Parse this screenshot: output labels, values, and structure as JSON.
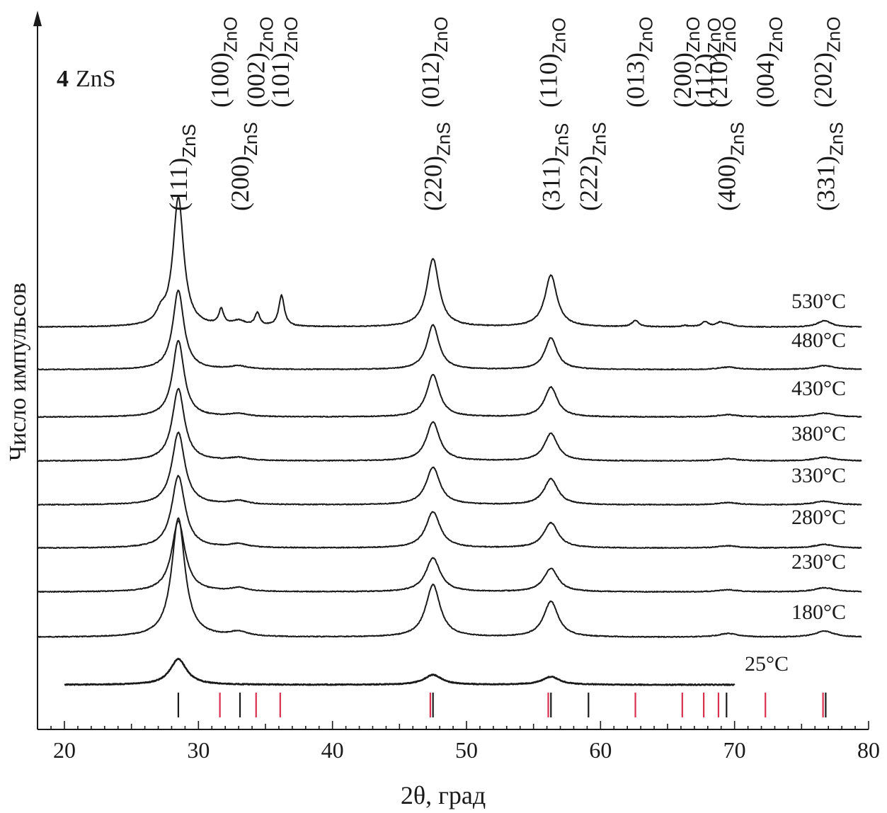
{
  "chart_data": {
    "type": "line",
    "title": "4 ZnS",
    "title_number": "4",
    "title_text": "ZnS",
    "xlabel": "2θ, град",
    "ylabel": "Число импульсов",
    "xlim": [
      18,
      80
    ],
    "xticks": [
      20,
      30,
      40,
      50,
      60,
      70,
      80
    ],
    "y_ticks_shown": false,
    "grid": false,
    "series": [
      {
        "name": "25°C",
        "peaks": [
          {
            "x": 28.5,
            "h": 0.13,
            "w": 0.75
          },
          {
            "x": 47.5,
            "h": 0.05,
            "w": 0.8
          },
          {
            "x": 56.3,
            "h": 0.04,
            "w": 0.8
          }
        ],
        "xrange": [
          20,
          70
        ]
      },
      {
        "name": "180°C",
        "peaks": [
          {
            "x": 28.5,
            "h": 1.0,
            "w": 0.6
          },
          {
            "x": 33.0,
            "h": 0.04,
            "w": 0.8
          },
          {
            "x": 47.5,
            "h": 0.44,
            "w": 0.65
          },
          {
            "x": 56.3,
            "h": 0.3,
            "w": 0.65
          },
          {
            "x": 69.5,
            "h": 0.03,
            "w": 0.9
          },
          {
            "x": 76.7,
            "h": 0.05,
            "w": 0.9
          }
        ]
      },
      {
        "name": "230°C",
        "peaks": [
          {
            "x": 28.5,
            "h": 1.0,
            "w": 0.6
          },
          {
            "x": 33.0,
            "h": 0.05,
            "w": 0.8
          },
          {
            "x": 47.5,
            "h": 0.48,
            "w": 0.65
          },
          {
            "x": 56.3,
            "h": 0.33,
            "w": 0.65
          },
          {
            "x": 69.5,
            "h": 0.03,
            "w": 0.9
          },
          {
            "x": 76.7,
            "h": 0.06,
            "w": 0.9
          }
        ]
      },
      {
        "name": "280°C",
        "peaks": [
          {
            "x": 28.5,
            "h": 1.0,
            "w": 0.6
          },
          {
            "x": 33.0,
            "h": 0.05,
            "w": 0.8
          },
          {
            "x": 47.5,
            "h": 0.5,
            "w": 0.65
          },
          {
            "x": 56.3,
            "h": 0.35,
            "w": 0.65
          },
          {
            "x": 69.5,
            "h": 0.03,
            "w": 0.9
          },
          {
            "x": 76.7,
            "h": 0.05,
            "w": 0.9
          }
        ]
      },
      {
        "name": "330°C",
        "peaks": [
          {
            "x": 28.5,
            "h": 1.0,
            "w": 0.58
          },
          {
            "x": 33.0,
            "h": 0.05,
            "w": 0.8
          },
          {
            "x": 47.5,
            "h": 0.52,
            "w": 0.62
          },
          {
            "x": 56.3,
            "h": 0.36,
            "w": 0.62
          },
          {
            "x": 69.5,
            "h": 0.03,
            "w": 0.9
          },
          {
            "x": 76.7,
            "h": 0.05,
            "w": 0.9
          }
        ]
      },
      {
        "name": "380°C",
        "peaks": [
          {
            "x": 28.5,
            "h": 1.0,
            "w": 0.55
          },
          {
            "x": 33.0,
            "h": 0.04,
            "w": 0.8
          },
          {
            "x": 47.5,
            "h": 0.54,
            "w": 0.6
          },
          {
            "x": 56.3,
            "h": 0.38,
            "w": 0.6
          },
          {
            "x": 69.5,
            "h": 0.03,
            "w": 0.9
          },
          {
            "x": 76.7,
            "h": 0.05,
            "w": 0.9
          }
        ]
      },
      {
        "name": "430°C",
        "peaks": [
          {
            "x": 28.5,
            "h": 1.0,
            "w": 0.52
          },
          {
            "x": 33.0,
            "h": 0.04,
            "w": 0.8
          },
          {
            "x": 47.5,
            "h": 0.55,
            "w": 0.58
          },
          {
            "x": 56.3,
            "h": 0.39,
            "w": 0.58
          },
          {
            "x": 69.5,
            "h": 0.03,
            "w": 0.9
          },
          {
            "x": 76.7,
            "h": 0.05,
            "w": 0.9
          }
        ]
      },
      {
        "name": "480°C",
        "peaks": [
          {
            "x": 28.5,
            "h": 1.0,
            "w": 0.5
          },
          {
            "x": 33.0,
            "h": 0.04,
            "w": 0.8
          },
          {
            "x": 47.5,
            "h": 0.56,
            "w": 0.55
          },
          {
            "x": 56.3,
            "h": 0.4,
            "w": 0.55
          },
          {
            "x": 69.5,
            "h": 0.03,
            "w": 0.9
          },
          {
            "x": 76.7,
            "h": 0.05,
            "w": 0.9
          }
        ]
      },
      {
        "name": "530°C",
        "peaks": [
          {
            "x": 27.2,
            "h": 0.08,
            "w": 0.4
          },
          {
            "x": 28.5,
            "h": 1.0,
            "w": 0.48
          },
          {
            "x": 31.7,
            "h": 0.12,
            "w": 0.22
          },
          {
            "x": 33.0,
            "h": 0.04,
            "w": 0.6
          },
          {
            "x": 34.4,
            "h": 0.1,
            "w": 0.22
          },
          {
            "x": 36.2,
            "h": 0.24,
            "w": 0.25
          },
          {
            "x": 47.5,
            "h": 0.53,
            "w": 0.55
          },
          {
            "x": 56.3,
            "h": 0.4,
            "w": 0.55
          },
          {
            "x": 62.6,
            "h": 0.05,
            "w": 0.3
          },
          {
            "x": 66.3,
            "h": 0.01,
            "w": 0.3
          },
          {
            "x": 67.8,
            "h": 0.04,
            "w": 0.3
          },
          {
            "x": 68.9,
            "h": 0.03,
            "w": 0.3
          },
          {
            "x": 69.5,
            "h": 0.02,
            "w": 0.5
          },
          {
            "x": 76.7,
            "h": 0.05,
            "w": 0.6
          }
        ]
      }
    ],
    "reference_lines": {
      "ZnS": {
        "color": "#1a1a1a",
        "positions": [
          28.5,
          33.1,
          47.5,
          56.3,
          59.1,
          69.4,
          76.8
        ]
      },
      "ZnO": {
        "color": "#d9304f",
        "positions": [
          31.6,
          34.3,
          36.1,
          47.3,
          56.1,
          62.6,
          66.1,
          67.7,
          68.8,
          72.3,
          76.6
        ]
      }
    },
    "annotations": {
      "znS": [
        {
          "x": 28.5,
          "label": "(111)",
          "sub": "ZnS"
        },
        {
          "x": 33.1,
          "label": "(200)",
          "sub": "ZnS"
        },
        {
          "x": 47.5,
          "label": "(220)",
          "sub": "ZnS"
        },
        {
          "x": 56.3,
          "label": "(311)",
          "sub": "ZnS"
        },
        {
          "x": 59.1,
          "label": "(222)",
          "sub": "ZnS"
        },
        {
          "x": 69.4,
          "label": "(400)",
          "sub": "ZnS"
        },
        {
          "x": 76.8,
          "label": "(331)",
          "sub": "ZnS"
        }
      ],
      "znO": [
        {
          "x": 31.6,
          "label": "(100)",
          "sub": "ZnO"
        },
        {
          "x": 34.3,
          "label": "(002)",
          "sub": "ZnO"
        },
        {
          "x": 36.1,
          "label": "(101)",
          "sub": "ZnO"
        },
        {
          "x": 47.3,
          "label": "(012)",
          "sub": "ZnO"
        },
        {
          "x": 56.1,
          "label": "(110)",
          "sub": "ZnO"
        },
        {
          "x": 62.6,
          "label": "(013)",
          "sub": "ZnO"
        },
        {
          "x": 66.1,
          "label": "(200)",
          "sub": "ZnO"
        },
        {
          "x": 67.7,
          "label": "(112)",
          "sub": "ZnO"
        },
        {
          "x": 68.8,
          "label": "(210)",
          "sub": "ZnO"
        },
        {
          "x": 72.3,
          "label": "(004)",
          "sub": "ZnO"
        },
        {
          "x": 76.6,
          "label": "(202)",
          "sub": "ZnO"
        }
      ]
    }
  }
}
